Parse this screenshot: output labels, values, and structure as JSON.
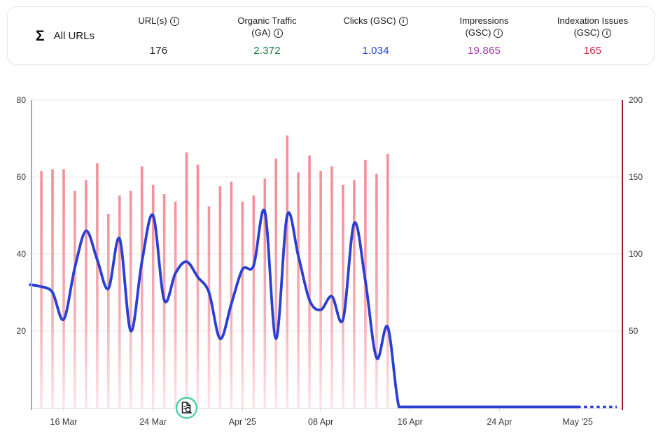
{
  "summary_card": {
    "sigma_symbol": "Σ",
    "row_label": "All URLs",
    "info_symbol": "i",
    "metrics": [
      {
        "label": "URL(s)",
        "value": "176",
        "color": "#1c1c1e"
      },
      {
        "label": "Organic Traffic (GA)",
        "value": "2.372",
        "color": "#1b7a44"
      },
      {
        "label": "Clicks (GSC)",
        "value": "1.034",
        "color": "#2742d8"
      },
      {
        "label": "Impressions (GSC)",
        "value": "19.865",
        "color": "#a838ad"
      },
      {
        "label": "Indexation Issues (GSC)",
        "value": "165",
        "color": "#c9233f"
      }
    ]
  },
  "chart_data": {
    "type": "line+bar",
    "x_axis": {
      "start_date": "13 Mar",
      "ticks": [
        {
          "label": "16 Mar",
          "day": 3
        },
        {
          "label": "24 Mar",
          "day": 11
        },
        {
          "label": "Apr '25",
          "day": 19
        },
        {
          "label": "08 Apr",
          "day": 26
        },
        {
          "label": "16 Apr",
          "day": 34
        },
        {
          "label": "24 Apr",
          "day": 42
        },
        {
          "label": "May '25",
          "day": 49
        }
      ]
    },
    "left_axis": {
      "range": [
        0,
        80
      ],
      "ticks": [
        20,
        40,
        60,
        80
      ],
      "axis_color": "#97a5ea",
      "label_color": "#333333"
    },
    "right_axis": {
      "range": [
        0,
        200
      ],
      "ticks": [
        50,
        100,
        150,
        200
      ],
      "axis_color": "#9c1626",
      "label_color": "#333333"
    },
    "grid_color": "#e9e9ec",
    "series": [
      {
        "name": "Clicks (GSC)",
        "type": "line",
        "axis": "left",
        "color": "#2b3fd2",
        "start_day_offset": 0,
        "values": [
          32,
          31.5,
          30,
          23,
          36.5,
          46,
          38.5,
          31,
          44,
          20,
          38,
          50,
          28,
          35,
          38,
          34,
          30,
          18,
          27,
          36,
          37,
          51,
          18,
          50,
          39.5,
          28,
          25.5,
          29,
          23,
          48,
          33,
          13,
          21,
          0,
          0,
          0,
          0,
          0,
          0,
          0,
          0,
          0,
          0,
          0,
          0,
          0,
          0,
          0,
          0,
          0
        ],
        "dashed_tail": {
          "from_day": 49,
          "to_day": 52.5
        }
      },
      {
        "name": "Indexation Issues (GSC)",
        "type": "bar",
        "axis": "right",
        "color_top": "#f49099",
        "color_bottom": "#fceaec",
        "start_day_offset": 1,
        "values": [
          154,
          155,
          155,
          141,
          148,
          159,
          126,
          138,
          141,
          157,
          145,
          139,
          134,
          166,
          158,
          131,
          144,
          147,
          134,
          138,
          149,
          162,
          177,
          153,
          164,
          154,
          157,
          145,
          148,
          161,
          152,
          165
        ]
      }
    ],
    "marker": {
      "day": 14,
      "icon": "page-search-icon",
      "ring_color": "#4fd0a7"
    }
  }
}
